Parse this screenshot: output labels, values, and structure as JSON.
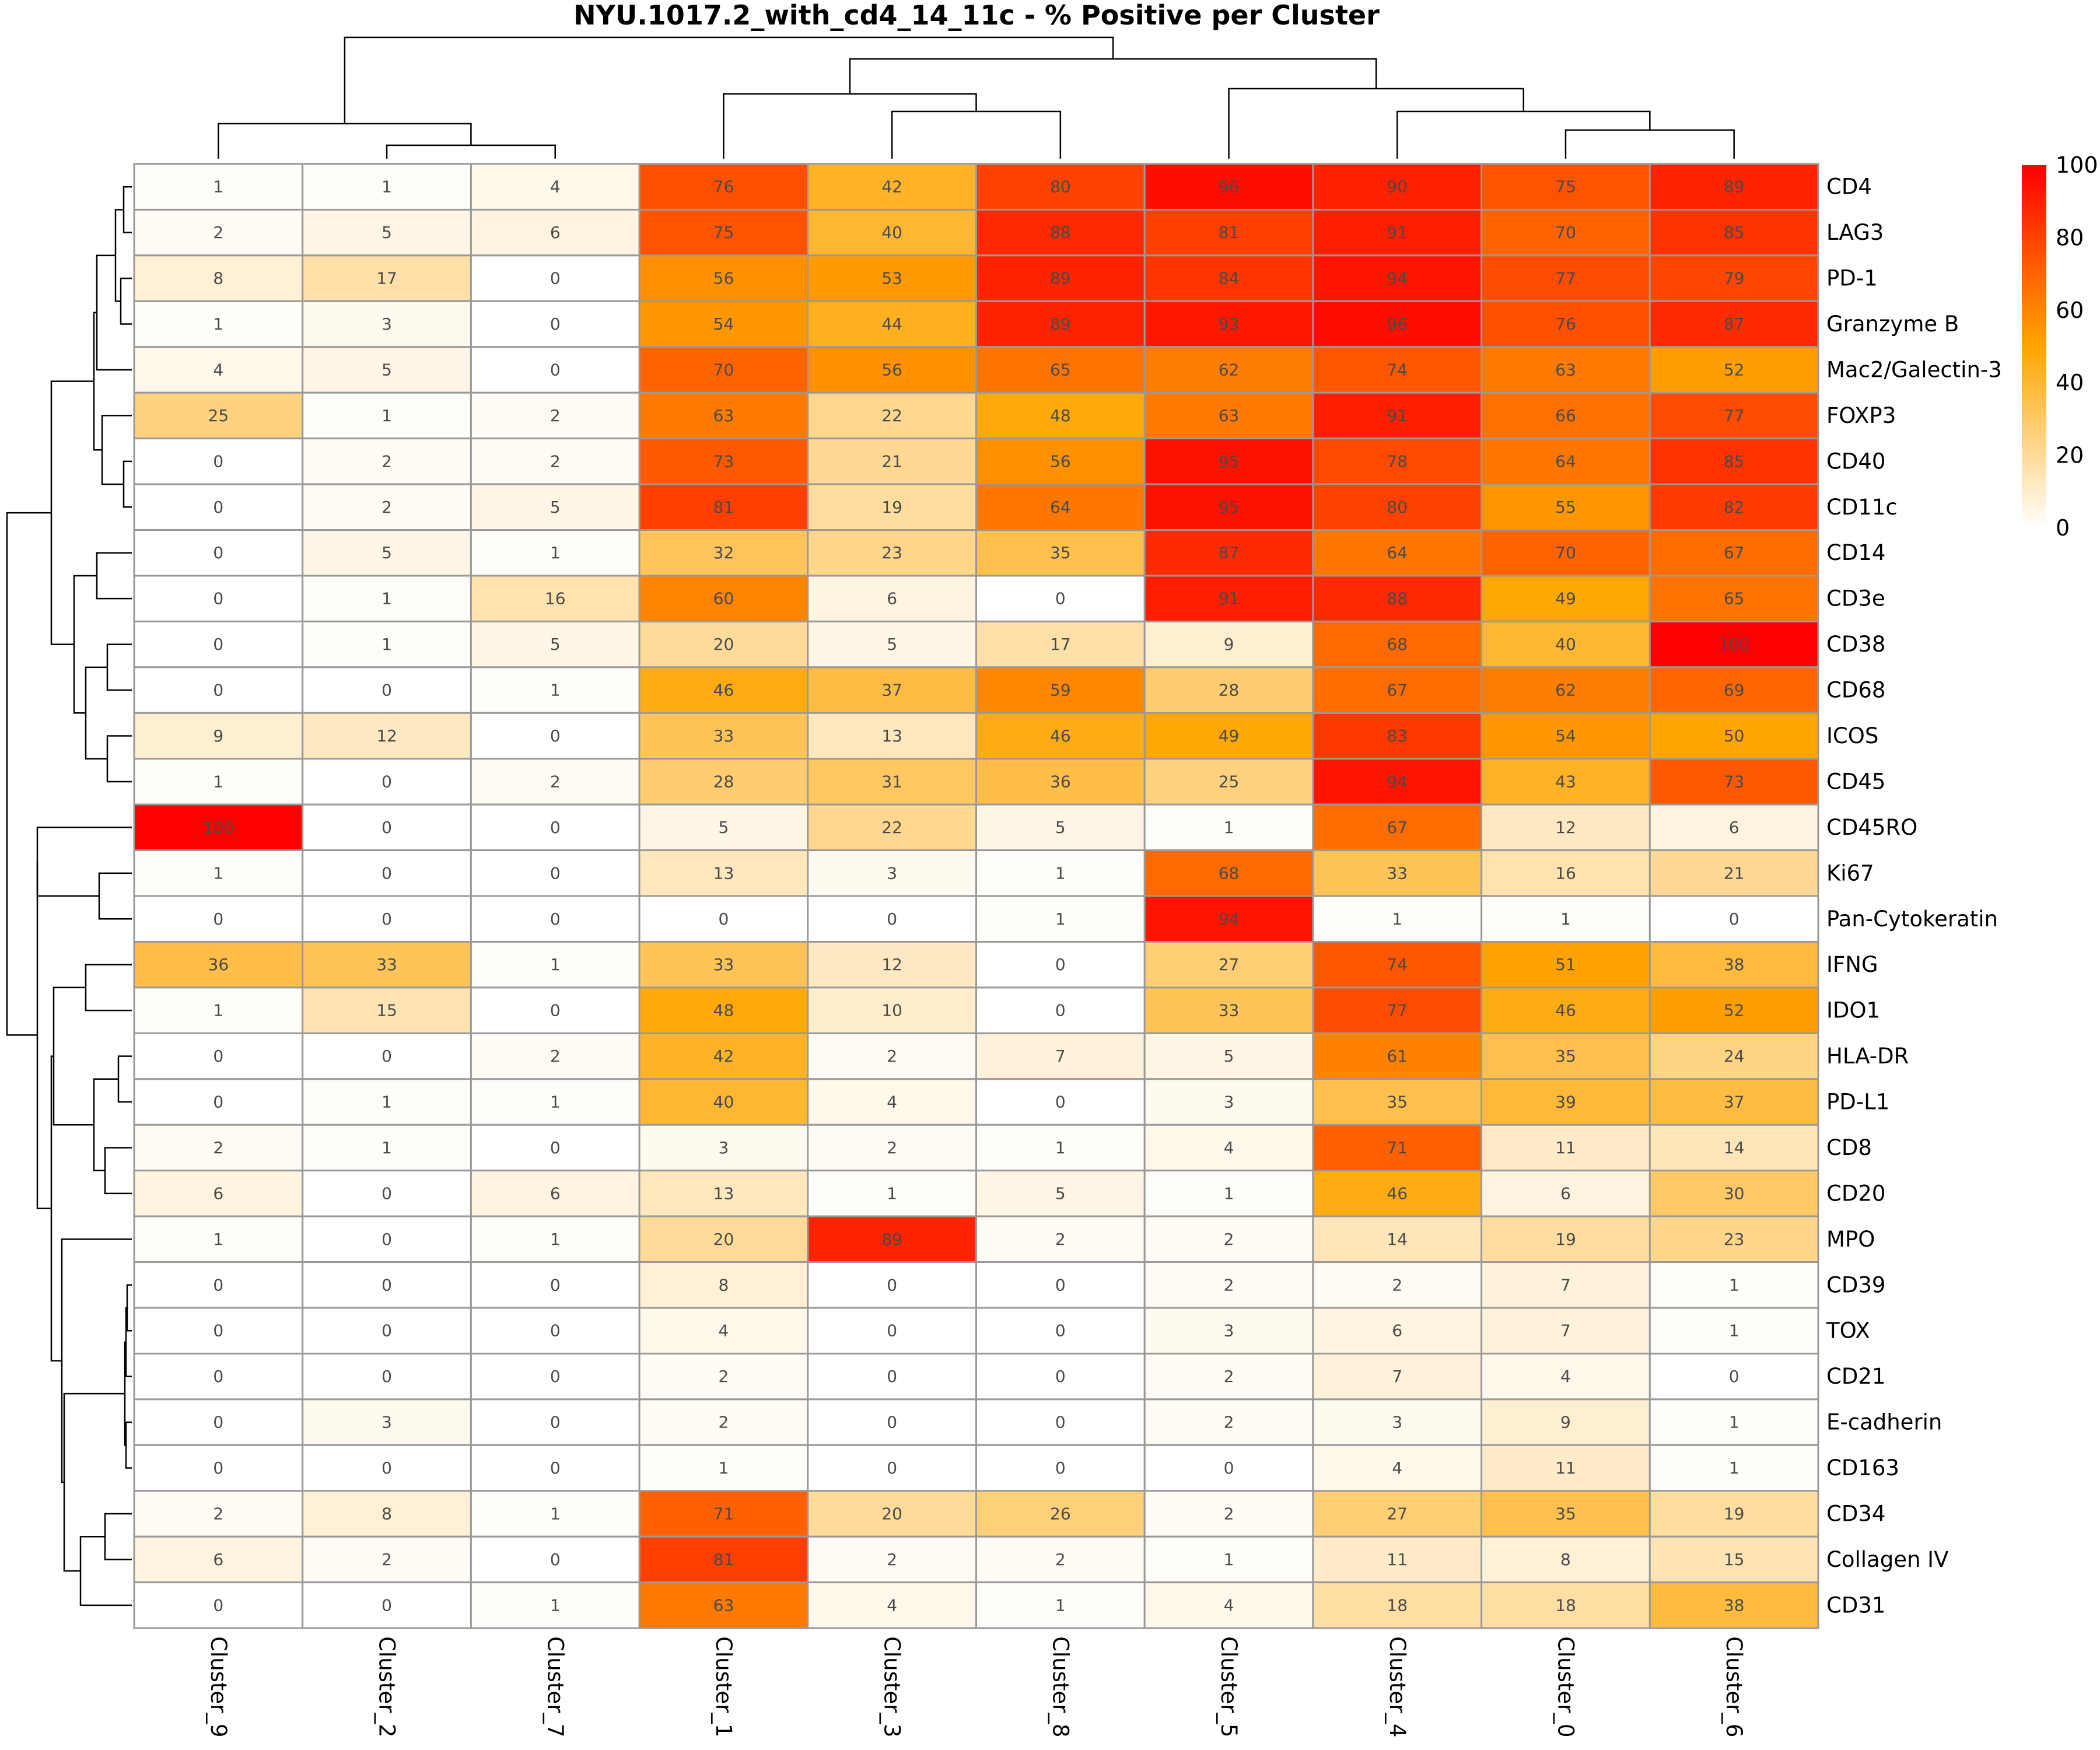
{
  "chart_data": {
    "type": "heatmap",
    "title": "NYU.1017.2_with_cd4_14_11c - % Positive per Cluster",
    "columns": [
      "Cluster_9",
      "Cluster_2",
      "Cluster_7",
      "Cluster_1",
      "Cluster_3",
      "Cluster_8",
      "Cluster_5",
      "Cluster_4",
      "Cluster_0",
      "Cluster_6"
    ],
    "rows": [
      "CD4",
      "LAG3",
      "PD-1",
      "Granzyme B",
      "Mac2/Galectin-3",
      "FOXP3",
      "CD40",
      "CD11c",
      "CD14",
      "CD3e",
      "CD38",
      "CD68",
      "ICOS",
      "CD45",
      "CD45RO",
      "Ki67",
      "Pan-Cytokeratin",
      "IFNG",
      "IDO1",
      "HLA-DR",
      "PD-L1",
      "CD8",
      "CD20",
      "MPO",
      "CD39",
      "TOX",
      "CD21",
      "E-cadherin",
      "CD163",
      "CD34",
      "Collagen IV",
      "CD31"
    ],
    "values": [
      [
        1,
        1,
        4,
        76,
        42,
        80,
        96,
        90,
        75,
        89
      ],
      [
        2,
        5,
        6,
        75,
        40,
        88,
        81,
        91,
        70,
        85
      ],
      [
        8,
        17,
        0,
        56,
        53,
        89,
        84,
        94,
        77,
        79
      ],
      [
        1,
        3,
        0,
        54,
        44,
        89,
        93,
        96,
        76,
        87
      ],
      [
        4,
        5,
        0,
        70,
        56,
        65,
        62,
        74,
        63,
        52
      ],
      [
        25,
        1,
        2,
        63,
        22,
        48,
        63,
        91,
        66,
        77
      ],
      [
        0,
        2,
        2,
        73,
        21,
        56,
        95,
        78,
        64,
        85
      ],
      [
        0,
        2,
        5,
        81,
        19,
        64,
        95,
        80,
        55,
        82
      ],
      [
        0,
        5,
        1,
        32,
        23,
        35,
        87,
        64,
        70,
        67
      ],
      [
        0,
        1,
        16,
        60,
        6,
        0,
        91,
        88,
        49,
        65
      ],
      [
        0,
        1,
        5,
        20,
        5,
        17,
        9,
        68,
        40,
        100
      ],
      [
        0,
        0,
        1,
        46,
        37,
        59,
        28,
        67,
        62,
        69
      ],
      [
        9,
        12,
        0,
        33,
        13,
        46,
        49,
        83,
        54,
        50
      ],
      [
        1,
        0,
        2,
        28,
        31,
        36,
        25,
        94,
        43,
        73
      ],
      [
        100,
        0,
        0,
        5,
        22,
        5,
        1,
        67,
        12,
        6
      ],
      [
        1,
        0,
        0,
        13,
        3,
        1,
        68,
        33,
        16,
        21
      ],
      [
        0,
        0,
        0,
        0,
        0,
        1,
        94,
        1,
        1,
        0
      ],
      [
        36,
        33,
        1,
        33,
        12,
        0,
        27,
        74,
        51,
        38
      ],
      [
        1,
        15,
        0,
        48,
        10,
        0,
        33,
        77,
        46,
        52
      ],
      [
        0,
        0,
        2,
        42,
        2,
        7,
        5,
        61,
        35,
        24
      ],
      [
        0,
        1,
        1,
        40,
        4,
        0,
        3,
        35,
        39,
        37
      ],
      [
        2,
        1,
        0,
        3,
        2,
        1,
        4,
        71,
        11,
        14
      ],
      [
        6,
        0,
        6,
        13,
        1,
        5,
        1,
        46,
        6,
        30
      ],
      [
        1,
        0,
        1,
        20,
        89,
        2,
        2,
        14,
        19,
        23
      ],
      [
        0,
        0,
        0,
        8,
        0,
        0,
        2,
        2,
        7,
        1
      ],
      [
        0,
        0,
        0,
        4,
        0,
        0,
        3,
        6,
        7,
        1
      ],
      [
        0,
        0,
        0,
        2,
        0,
        0,
        2,
        7,
        4,
        0
      ],
      [
        0,
        3,
        0,
        2,
        0,
        0,
        2,
        3,
        9,
        1
      ],
      [
        0,
        0,
        0,
        1,
        0,
        0,
        0,
        4,
        11,
        1
      ],
      [
        2,
        8,
        1,
        71,
        20,
        26,
        2,
        27,
        35,
        19
      ],
      [
        6,
        2,
        0,
        81,
        2,
        2,
        1,
        11,
        8,
        15
      ],
      [
        0,
        0,
        1,
        63,
        4,
        1,
        4,
        18,
        18,
        38
      ]
    ],
    "colorbar": {
      "ticks": [
        "0",
        "20",
        "40",
        "60",
        "80",
        "100"
      ],
      "range": [
        0,
        100
      ]
    },
    "colors": {
      "low": "#FFFFFF",
      "mid": "#FFA500",
      "high": "#FF0000",
      "grid": "#999999"
    }
  }
}
